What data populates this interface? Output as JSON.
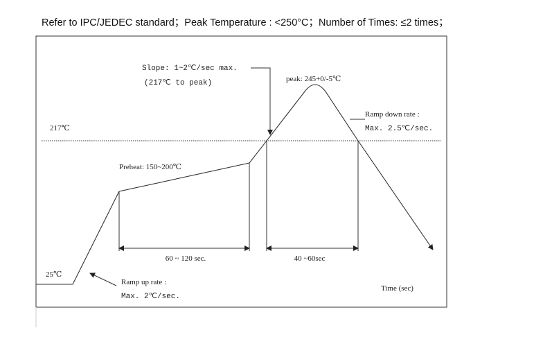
{
  "header": {
    "title": "Refer to IPC/JEDEC standard；Peak Temperature : <250°C；Number of Times:  ≤2 times；"
  },
  "diagram": {
    "slope": [
      "Slope: 1~2℃/sec max.",
      "(217℃ to peak)"
    ],
    "peak": "peak: 245+0/-5℃",
    "ramp_down": [
      "Ramp down rate :",
      "Max. 2.5℃/sec."
    ],
    "line_temp": "217℃",
    "preheat": "Preheat: 150~200℃",
    "preheat_time": "60 ~ 120 sec.",
    "peak_time": "40 ~60sec",
    "start_temp": "25℃",
    "ramp_up": [
      "Ramp up rate :",
      "Max. 2℃/sec."
    ],
    "x_axis": "Time (sec)"
  }
}
